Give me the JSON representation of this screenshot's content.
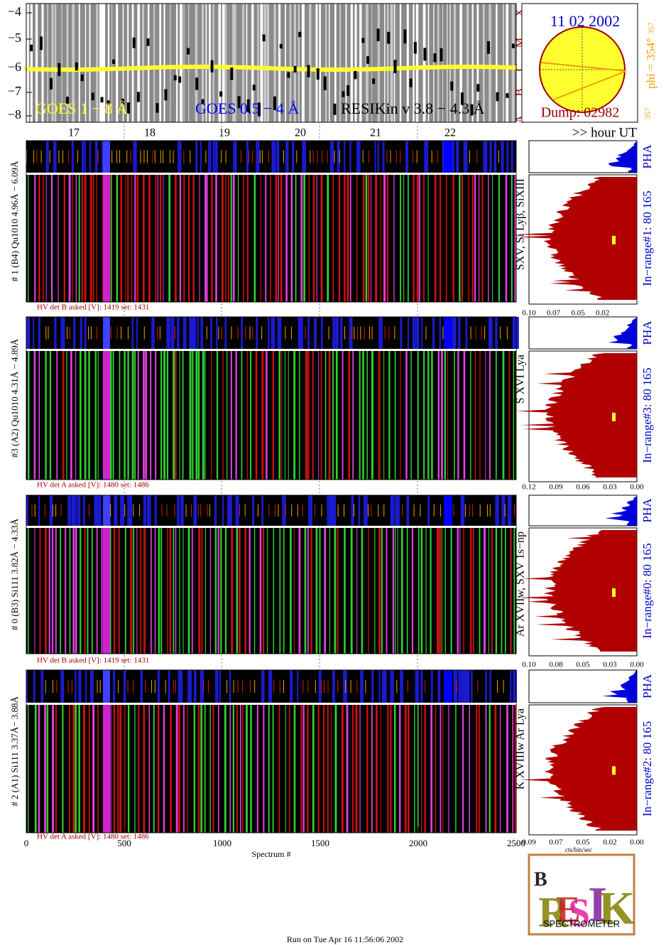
{
  "goes": {
    "yticks": [
      "−4",
      "−5",
      "−6",
      "−7",
      "−8"
    ],
    "classes": [
      "A",
      "B",
      "C",
      "M",
      "X"
    ],
    "legend": [
      "GOES 1 − 8 Å",
      "GOES 0.5 − 4 Å",
      "RESIKin v 3.8 − 4.3 Å"
    ],
    "hours": [
      "17",
      "18",
      "19",
      "20",
      "21",
      "22"
    ],
    "hour_label": ">> hour UT"
  },
  "sun": {
    "date": "11 02 2002",
    "dump": "Dump: 02982",
    "phi": "phi = 354°",
    "phi_sub": "357",
    "left": "357"
  },
  "panels": [
    {
      "ylabel": "# 1 (B4) Qu1010 4.96Å − 6.09Å",
      "lines": "SXV, Si Lyβ, SiXIII",
      "hv": "HV det B asked [V]:  1419 set:  1431",
      "pha": "PHA",
      "range": "In−range#1:   80 165",
      "ticks": [
        "0.10",
        "0.07",
        "0.05",
        "0.02"
      ]
    },
    {
      "ylabel": "#3 (A2) Qu1010  4.31Å − 4.89Å",
      "lines": "S XVI Lya",
      "hv": "HV det A asked [V]:  1480 set:  1486",
      "pha": "PHA",
      "range": "In−range#3:   80 165",
      "ticks": [
        "0.12",
        "0.09",
        "0.06",
        "0.03",
        "0.00"
      ]
    },
    {
      "ylabel": "# 0 (B3) Si111  3.82Å − 4.33Å",
      "lines": "Ar XVIIw,  SXV  1s−np",
      "hv": "HV det B asked [V]:  1419 set:  1431",
      "pha": "PHA",
      "range": "In−range#0:   80 165",
      "ticks": [
        "0.10",
        "0.08",
        "0.05",
        "0.03",
        "0.00"
      ]
    },
    {
      "ylabel": "# 2 (A1) Si111  3.37Å− 3.88Å",
      "lines": "K XVIIIw  Ar Lya",
      "hv": "HV det A asked [V]:  1480 set:  1486",
      "pha": "PHA",
      "range": "In−range#2:   80 165",
      "ticks": [
        "0.09",
        "0.07",
        "0.05",
        "0.02",
        "0.00"
      ]
    }
  ],
  "xaxis": {
    "ticks": [
      "0",
      "500",
      "1000",
      "1500",
      "2000",
      "2500"
    ],
    "label": "Spectrum #"
  },
  "cts_label": "cts/bin/sec",
  "logo": {
    "text": "SPECTROMETER"
  },
  "footer": "Run on Tue Apr 16 11:56:06 2002"
}
